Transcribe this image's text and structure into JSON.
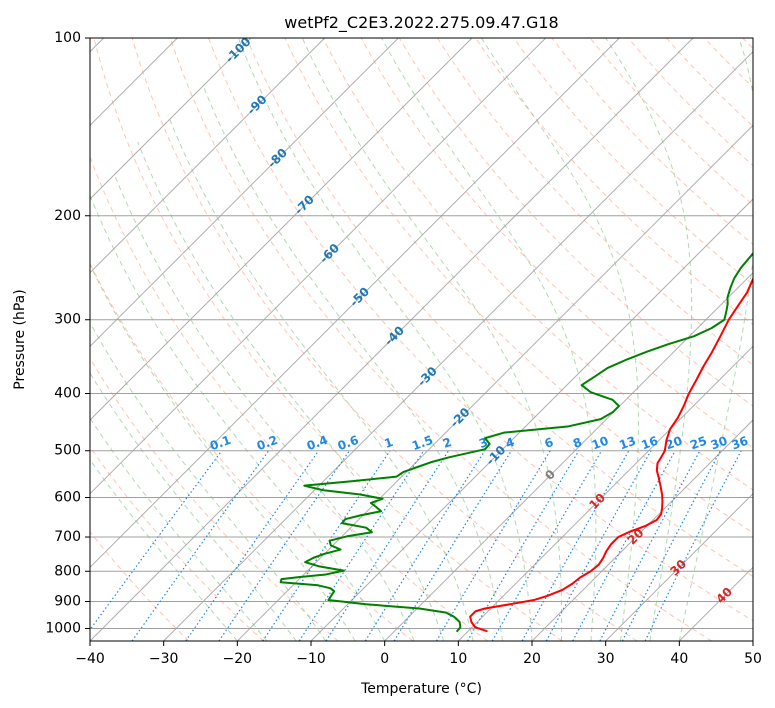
{
  "chart_data": {
    "type": "line",
    "title": "wetPf2_C2E3.2022.275.09.47.G18",
    "xlabel": "Temperature (°C)",
    "ylabel": "Pressure (hPa)",
    "xlim": [
      -40,
      50
    ],
    "ylim": [
      1050,
      100
    ],
    "y_scale": "log",
    "x_ticks": [
      "−40",
      "−30",
      "−20",
      "−10",
      "0",
      "10",
      "20",
      "30",
      "40",
      "50"
    ],
    "y_ticks": [
      "100",
      "200",
      "300",
      "400",
      "500",
      "600",
      "700",
      "800",
      "900",
      "1000"
    ],
    "grid": true,
    "colors": {
      "temperature": "#ff0000",
      "dewpoint": "#008000",
      "isotherm": "#a0a0a0",
      "dry_adiabat": "#ff9f7f",
      "moist_adiabat": "#7fbf7f",
      "mixing_ratio": "#1e88e5",
      "label_blue": "#1f77b4",
      "label_mixing": "#1e88e5",
      "label_red": "#d62728",
      "label_gray": "#7f7f7f"
    },
    "isotherm_labels": [
      "-100",
      "-90",
      "-80",
      "-70",
      "-60",
      "-50",
      "-40",
      "-30",
      "-20",
      "-10"
    ],
    "isotherm_label_zero": "0",
    "isotherm_labels_warm": [
      "10",
      "20",
      "30",
      "40"
    ],
    "mixing_ratio_labels": [
      "0.1",
      "0.2",
      "0.4",
      "0.6",
      "1",
      "1.5",
      "2",
      "3",
      "4",
      "6",
      "8",
      "10",
      "13",
      "16",
      "20",
      "25",
      "30",
      "36"
    ],
    "series": [
      {
        "key": "temperature",
        "points": [
          [
            12.5,
            1010
          ],
          [
            10.4,
            995
          ],
          [
            9.2,
            975
          ],
          [
            8.3,
            955
          ],
          [
            8.3,
            935
          ],
          [
            9.2,
            925
          ],
          [
            12.0,
            910
          ],
          [
            14.7,
            895
          ],
          [
            16.0,
            880
          ],
          [
            17.2,
            860
          ],
          [
            17.7,
            840
          ],
          [
            17.9,
            820
          ],
          [
            18.5,
            800
          ],
          [
            18.7,
            780
          ],
          [
            18.4,
            760
          ],
          [
            17.9,
            740
          ],
          [
            17.6,
            720
          ],
          [
            17.6,
            700
          ],
          [
            18.5,
            685
          ],
          [
            19.8,
            670
          ],
          [
            20.5,
            655
          ],
          [
            20.3,
            640
          ],
          [
            19.6,
            625
          ],
          [
            18.8,
            610
          ],
          [
            17.9,
            595
          ],
          [
            16.5,
            575
          ],
          [
            15.0,
            555
          ],
          [
            13.8,
            540
          ],
          [
            12.9,
            525
          ],
          [
            12.6,
            513
          ],
          [
            12.2,
            500
          ],
          [
            11.0,
            480
          ],
          [
            10.0,
            460
          ],
          [
            9.5,
            440
          ],
          [
            8.7,
            420
          ],
          [
            7.7,
            400
          ],
          [
            6.9,
            380
          ],
          [
            6.0,
            360
          ],
          [
            5.2,
            340
          ],
          [
            4.2,
            320
          ],
          [
            3.1,
            300
          ],
          [
            2.5,
            285
          ],
          [
            1.9,
            270
          ],
          [
            0.8,
            255
          ],
          [
            -0.5,
            240
          ],
          [
            -1.5,
            225
          ],
          [
            -2.0,
            212
          ],
          [
            -2.0,
            200
          ],
          [
            -1.0,
            190
          ],
          [
            0.7,
            182
          ],
          [
            3.1,
            175
          ],
          [
            5.0,
            168
          ],
          [
            6.8,
            160
          ],
          [
            8.7,
            152
          ],
          [
            9.9,
            145
          ],
          [
            10.7,
            140
          ],
          [
            11.8,
            135
          ],
          [
            12.8,
            130
          ],
          [
            14.0,
            125
          ],
          [
            15.1,
            120
          ],
          [
            16.7,
            115
          ],
          [
            18.3,
            110
          ],
          [
            20.0,
            105
          ],
          [
            20.9,
            100
          ]
        ]
      },
      {
        "key": "dewpoint",
        "points": [
          [
            8.5,
            1010
          ],
          [
            8.4,
            995
          ],
          [
            7.6,
            975
          ],
          [
            6.1,
            955
          ],
          [
            4.5,
            940
          ],
          [
            0.3,
            925
          ],
          [
            -7.5,
            910
          ],
          [
            -13.2,
            895
          ],
          [
            -13.4,
            880
          ],
          [
            -13.6,
            865
          ],
          [
            -14.5,
            855
          ],
          [
            -16.6,
            845
          ],
          [
            -22.1,
            835
          ],
          [
            -22.4,
            825
          ],
          [
            -20.2,
            818
          ],
          [
            -17.0,
            810
          ],
          [
            -15.1,
            798
          ],
          [
            -19.0,
            785
          ],
          [
            -21.5,
            772
          ],
          [
            -21.0,
            760
          ],
          [
            -20.1,
            748
          ],
          [
            -18.4,
            735
          ],
          [
            -20.3,
            723
          ],
          [
            -21.1,
            710
          ],
          [
            -19.3,
            698
          ],
          [
            -16.5,
            687
          ],
          [
            -17.9,
            675
          ],
          [
            -21.8,
            663
          ],
          [
            -21.9,
            653
          ],
          [
            -20.3,
            643
          ],
          [
            -18.1,
            633
          ],
          [
            -19.3,
            623
          ],
          [
            -20.6,
            613
          ],
          [
            -19.6,
            603
          ],
          [
            -23.2,
            593
          ],
          [
            -28.9,
            583
          ],
          [
            -32.0,
            573
          ],
          [
            -26.0,
            563
          ],
          [
            -20.7,
            553
          ],
          [
            -20.4,
            543
          ],
          [
            -19.2,
            533
          ],
          [
            -18.0,
            523
          ],
          [
            -16.2,
            513
          ],
          [
            -12.4,
            497
          ],
          [
            -12.5,
            487
          ],
          [
            -13.9,
            476
          ],
          [
            -12.1,
            466
          ],
          [
            -4.3,
            455
          ],
          [
            -0.8,
            442
          ],
          [
            -0.1,
            430
          ],
          [
            -0.1,
            420
          ],
          [
            -1.8,
            410
          ],
          [
            -5.8,
            398
          ],
          [
            -8.0,
            387
          ],
          [
            -7.4,
            375
          ],
          [
            -6.8,
            362
          ],
          [
            -5.3,
            350
          ],
          [
            -3.7,
            340
          ],
          [
            -1.8,
            330
          ],
          [
            0.6,
            320
          ],
          [
            1.9,
            310
          ],
          [
            2.5,
            300
          ],
          [
            1.6,
            290
          ],
          [
            0.8,
            282
          ],
          [
            -0.1,
            275
          ],
          [
            -1.0,
            265
          ],
          [
            -1.8,
            255
          ],
          [
            -2.3,
            245
          ],
          [
            -2.6,
            232
          ],
          [
            -2.5,
            220
          ],
          [
            -2.6,
            210
          ],
          [
            -1.7,
            200
          ],
          [
            -1.5,
            192
          ],
          [
            -2.9,
            185
          ],
          [
            -5.2,
            178
          ],
          [
            -7.9,
            171
          ],
          [
            -9.6,
            164
          ],
          [
            -9.4,
            156
          ],
          [
            -8.6,
            149
          ],
          [
            -6.4,
            143
          ],
          [
            -4.2,
            137
          ],
          [
            -2.4,
            131
          ],
          [
            -1.6,
            126
          ],
          [
            -0.4,
            120
          ],
          [
            0.4,
            113
          ],
          [
            1.6,
            108
          ],
          [
            2.4,
            104
          ],
          [
            3.0,
            100
          ]
        ]
      }
    ]
  }
}
